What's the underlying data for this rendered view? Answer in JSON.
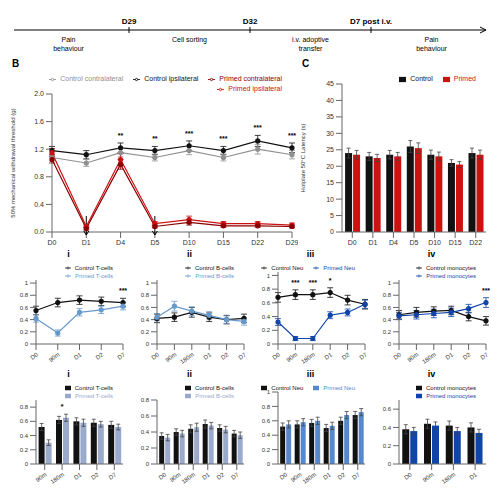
{
  "chart_data": [
    {
      "type": "timeline",
      "categories": [
        "D29",
        "D32",
        "D7 post i.v."
      ],
      "annotations": [
        "Pain\nbehaviour",
        "Cell sorting",
        "i.v. adoptive\ntransfer",
        "Pain\nbehaviour"
      ]
    },
    {
      "type": "line",
      "title": "B",
      "y_label": "50% mechanical withdrawal threshold (g)",
      "categories": [
        "D0",
        "D1",
        "D4",
        "D5",
        "D10",
        "D15",
        "D22",
        "D29"
      ],
      "series": [
        {
          "name": "Control ipsilateral",
          "color": "#111111",
          "marker": "circle",
          "values": [
            1.18,
            1.12,
            1.22,
            1.18,
            1.25,
            1.18,
            1.32,
            1.22
          ],
          "errors": [
            0.06,
            0.06,
            0.07,
            0.06,
            0.07,
            0.06,
            0.08,
            0.07
          ]
        },
        {
          "name": "Control contralateral",
          "color": "#909090",
          "marker": "circle",
          "values": [
            1.08,
            1.0,
            1.15,
            1.08,
            1.18,
            1.08,
            1.2,
            1.12
          ],
          "errors": [
            0.05,
            0.05,
            0.06,
            0.05,
            0.06,
            0.05,
            0.07,
            0.06
          ]
        },
        {
          "name": "Primed ipsilateral",
          "color": "#cc1111",
          "marker": "circle",
          "values": [
            1.15,
            0.08,
            1.05,
            0.12,
            0.18,
            0.12,
            0.12,
            0.1
          ],
          "errors": [
            0.06,
            0.02,
            0.09,
            0.03,
            0.05,
            0.03,
            0.03,
            0.03
          ]
        },
        {
          "name": "Primed contralateral",
          "color": "#8b0000",
          "marker": "circle",
          "values": [
            1.05,
            0.05,
            0.98,
            0.08,
            0.14,
            0.09,
            0.09,
            0.08
          ],
          "errors": [
            0.05,
            0.02,
            0.07,
            0.02,
            0.04,
            0.02,
            0.02,
            0.02
          ]
        }
      ],
      "ylim": [
        0,
        2
      ],
      "yticks": [
        {
          "value": 0,
          "label": "0.0"
        },
        0.4,
        0.8,
        1.2,
        1.6,
        {
          "value": 2,
          "label": "2.0"
        }
      ],
      "annotations": [
        {
          "x": "D4",
          "text": "**"
        },
        {
          "x": "D5",
          "text": "**"
        },
        {
          "x": "D10",
          "text": "***"
        },
        {
          "x": "D15",
          "text": "***"
        },
        {
          "x": "D22",
          "text": "***"
        },
        {
          "x": "D29",
          "text": "***"
        }
      ],
      "arrows": [
        "D1",
        "D5"
      ],
      "legend": "upper right"
    },
    {
      "type": "bar",
      "title": "C",
      "y_label": "Hotplate 50°C Latency (s)",
      "categories": [
        "D0",
        "D1",
        "D4",
        "D5",
        "D10",
        "D15",
        "D22"
      ],
      "series": [
        {
          "name": "Control",
          "color": "#111111",
          "values": [
            24.0,
            23.0,
            23.5,
            26.0,
            23.5,
            21.0,
            24.0
          ],
          "errors": [
            1.5,
            1.2,
            1.3,
            1.8,
            1.4,
            1.0,
            1.5
          ]
        },
        {
          "name": "Primed",
          "color": "#cc1111",
          "values": [
            23.5,
            22.5,
            23.0,
            25.5,
            23.0,
            20.5,
            23.5
          ],
          "errors": [
            1.3,
            1.1,
            1.2,
            1.6,
            1.3,
            0.9,
            1.4
          ]
        }
      ],
      "ylim": [
        0,
        45
      ],
      "yticks": [
        0,
        5,
        10,
        15,
        20,
        25,
        30,
        35,
        40,
        45
      ],
      "legend": "upper right"
    },
    {
      "type": "line",
      "title": "i",
      "categories": [
        "D0",
        "90m",
        "D1",
        "D2",
        "D7"
      ],
      "series": [
        {
          "name": "Control T-cells",
          "color": "#111111",
          "marker": "circle",
          "values": [
            0.55,
            0.68,
            0.72,
            0.7,
            0.68
          ],
          "errors": [
            0.07,
            0.07,
            0.07,
            0.07,
            0.07
          ]
        },
        {
          "name": "Primed T-cells",
          "color": "#6699cc",
          "marker": "circle",
          "values": [
            0.42,
            0.18,
            0.52,
            0.56,
            0.62
          ],
          "errors": [
            0.06,
            0.05,
            0.06,
            0.06,
            0.06
          ]
        }
      ],
      "ylim": [
        0,
        1.05
      ],
      "yticks": [
        0,
        0.2,
        0.4,
        0.6,
        0.8,
        1
      ],
      "annotations": [
        {
          "x": "D7",
          "text": "***"
        }
      ],
      "legend": "upper right"
    },
    {
      "type": "line",
      "title": "ii",
      "categories": [
        "D0",
        "90m",
        "180m",
        "D1",
        "D2",
        "D7"
      ],
      "series": [
        {
          "name": "Control B-cells",
          "color": "#111111",
          "marker": "circle",
          "values": [
            0.42,
            0.44,
            0.52,
            0.44,
            0.4,
            0.42
          ],
          "errors": [
            0.07,
            0.07,
            0.08,
            0.07,
            0.07,
            0.07
          ]
        },
        {
          "name": "Primed B-cells",
          "color": "#6699cc",
          "marker": "circle",
          "values": [
            0.44,
            0.62,
            0.54,
            0.47,
            0.4,
            0.37
          ],
          "errors": [
            0.06,
            0.08,
            0.07,
            0.06,
            0.06,
            0.06
          ]
        }
      ],
      "ylim": [
        0,
        1.05
      ],
      "yticks": [
        0,
        0.2,
        0.4,
        0.6,
        0.8,
        1
      ],
      "legend": "upper right"
    },
    {
      "type": "line",
      "title": "iii",
      "categories": [
        "D0",
        "90m",
        "180m",
        "D1",
        "D2",
        "D7"
      ],
      "series": [
        {
          "name": "Control Neu",
          "color": "#111111",
          "marker": "circle",
          "values": [
            0.68,
            0.72,
            0.72,
            0.75,
            0.64,
            0.58
          ],
          "errors": [
            0.07,
            0.07,
            0.07,
            0.07,
            0.07,
            0.07
          ]
        },
        {
          "name": "Primed Neu",
          "color": "#1144aa",
          "marker": "circle",
          "values": [
            0.32,
            0.08,
            0.08,
            0.42,
            0.46,
            0.58
          ],
          "errors": [
            0.05,
            0.03,
            0.03,
            0.05,
            0.05,
            0.06
          ]
        }
      ],
      "ylim": [
        0,
        1.05
      ],
      "yticks": [
        0,
        0.2,
        0.4,
        0.6,
        0.8,
        1
      ],
      "annotations": [
        {
          "x": "90m",
          "text": "***"
        },
        {
          "x": "180m",
          "text": "***"
        },
        {
          "x": "D1",
          "text": "*"
        }
      ],
      "legend": "upper right"
    },
    {
      "type": "line",
      "title": "iv",
      "categories": [
        "D0",
        "90m",
        "180m",
        "D1",
        "D2",
        "D7"
      ],
      "series": [
        {
          "name": "Control monocytes",
          "color": "#111111",
          "marker": "circle",
          "values": [
            0.48,
            0.52,
            0.54,
            0.55,
            0.45,
            0.38
          ],
          "errors": [
            0.07,
            0.08,
            0.07,
            0.07,
            0.07,
            0.07
          ]
        },
        {
          "name": "Primed monocytes",
          "color": "#1144aa",
          "marker": "circle",
          "values": [
            0.46,
            0.48,
            0.5,
            0.52,
            0.58,
            0.68
          ],
          "errors": [
            0.06,
            0.07,
            0.07,
            0.07,
            0.07,
            0.08
          ]
        }
      ],
      "ylim": [
        0,
        1.05
      ],
      "yticks": [
        0,
        0.2,
        0.4,
        0.6,
        0.8,
        1
      ],
      "annotations": [
        {
          "x": "D7",
          "text": "***"
        }
      ],
      "legend": "upper right"
    },
    {
      "type": "bar",
      "title": "i",
      "categories": [
        "90m",
        "180m",
        "D1",
        "D2",
        "D7"
      ],
      "series": [
        {
          "name": "Control T-cells",
          "color": "#111111",
          "values": [
            0.52,
            0.62,
            0.6,
            0.58,
            0.55
          ],
          "errors": [
            0.05,
            0.05,
            0.05,
            0.05,
            0.05
          ]
        },
        {
          "name": "Primed T-cells",
          "color": "#99aacc",
          "values": [
            0.3,
            0.65,
            0.58,
            0.56,
            0.52
          ],
          "errors": [
            0.04,
            0.05,
            0.05,
            0.04,
            0.04
          ]
        }
      ],
      "ylim": [
        0,
        0.9
      ],
      "yticks": [
        0,
        0.2,
        0.4,
        0.6,
        0.8
      ],
      "annotations": [
        {
          "x": "180m",
          "text": "*"
        }
      ],
      "legend": "upper right"
    },
    {
      "type": "bar",
      "title": "ii",
      "categories": [
        "D0",
        "90m",
        "180m",
        "D1",
        "D2",
        "D7"
      ],
      "series": [
        {
          "name": "Control B-cells",
          "color": "#111111",
          "values": [
            0.35,
            0.4,
            0.44,
            0.5,
            0.45,
            0.38
          ],
          "errors": [
            0.04,
            0.04,
            0.05,
            0.05,
            0.04,
            0.04
          ]
        },
        {
          "name": "Primed B-cells",
          "color": "#99aacc",
          "values": [
            0.33,
            0.38,
            0.46,
            0.48,
            0.43,
            0.36
          ],
          "errors": [
            0.04,
            0.04,
            0.05,
            0.04,
            0.04,
            0.04
          ]
        }
      ],
      "ylim": [
        0,
        0.8
      ],
      "yticks": [
        0,
        0.2,
        0.4,
        0.6,
        0.8
      ],
      "legend": "upper right"
    },
    {
      "type": "bar",
      "title": "iii",
      "categories": [
        "D0",
        "90m",
        "180m",
        "D1",
        "D2",
        "D7"
      ],
      "series": [
        {
          "name": "Control Neu",
          "color": "#111111",
          "values": [
            0.52,
            0.55,
            0.57,
            0.5,
            0.6,
            0.68
          ],
          "errors": [
            0.05,
            0.05,
            0.05,
            0.05,
            0.05,
            0.05
          ]
        },
        {
          "name": "Primed Neu",
          "color": "#5588cc",
          "values": [
            0.55,
            0.58,
            0.6,
            0.53,
            0.68,
            0.72
          ],
          "errors": [
            0.05,
            0.05,
            0.05,
            0.05,
            0.05,
            0.05
          ]
        }
      ],
      "ylim": [
        0,
        1.0
      ],
      "yticks": [
        0,
        0.2,
        0.4,
        0.6,
        0.8,
        1
      ],
      "legend": "upper right"
    },
    {
      "type": "bar",
      "title": "iv",
      "categories": [
        "D0",
        "90m",
        "180m",
        "D1"
      ],
      "series": [
        {
          "name": "Control monocytes",
          "color": "#111111",
          "values": [
            0.38,
            0.44,
            0.42,
            0.4
          ],
          "errors": [
            0.05,
            0.05,
            0.05,
            0.05
          ]
        },
        {
          "name": "Primed monocytes",
          "color": "#1144aa",
          "values": [
            0.36,
            0.42,
            0.36,
            0.34
          ],
          "errors": [
            0.04,
            0.04,
            0.04,
            0.04
          ]
        }
      ],
      "ylim": [
        0,
        0.7
      ],
      "yticks": [
        0,
        0.2,
        0.4,
        0.6
      ],
      "legend": "upper right"
    }
  ]
}
